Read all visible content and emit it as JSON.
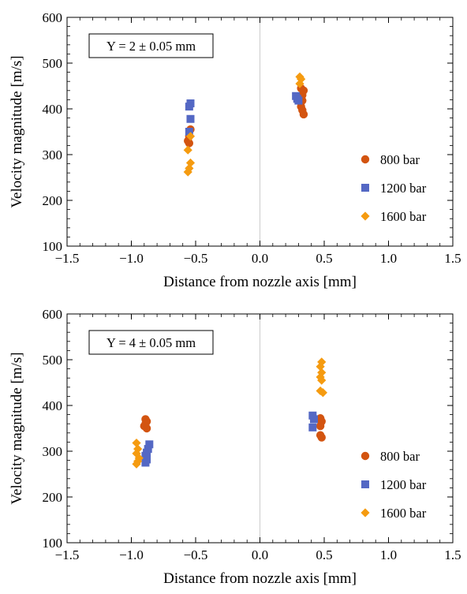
{
  "chart_data": [
    {
      "type": "scatter",
      "xlabel": "Distance from nozzle axis [mm]",
      "ylabel": "Velocity magnitude [m/s]",
      "xlim": [
        -1.5,
        1.5
      ],
      "ylim": [
        100,
        600
      ],
      "xticks": [
        -1.5,
        -1.0,
        -0.5,
        0.0,
        0.5,
        1.0,
        1.5
      ],
      "xtick_labels": [
        "−1.5",
        "−1.0",
        "−0.5",
        "0.0",
        "0.5",
        "1.0",
        "1.5"
      ],
      "yticks": [
        100,
        200,
        300,
        400,
        500,
        600
      ],
      "ytick_labels": [
        "100",
        "200",
        "300",
        "400",
        "500",
        "600"
      ],
      "annotation": "Y = 2 ± 0.05 mm",
      "legend_position": "right",
      "grid": false,
      "reference_line_x": 0,
      "series": [
        {
          "name": "800 bar",
          "marker": "circle",
          "color": "#d35410",
          "points": [
            [
              -0.54,
              355
            ],
            [
              -0.55,
              340
            ],
            [
              -0.56,
              330
            ],
            [
              -0.55,
              325
            ],
            [
              0.32,
              445
            ],
            [
              0.34,
              440
            ],
            [
              0.33,
              430
            ],
            [
              0.33,
              418
            ],
            [
              0.32,
              405
            ],
            [
              0.33,
              397
            ],
            [
              0.34,
              388
            ]
          ]
        },
        {
          "name": "1200 bar",
          "marker": "square",
          "color": "#5468c4",
          "points": [
            [
              -0.54,
              412
            ],
            [
              -0.55,
              405
            ],
            [
              -0.54,
              378
            ],
            [
              -0.55,
              350
            ],
            [
              0.28,
              428
            ],
            [
              0.29,
              422
            ],
            [
              0.3,
              418
            ]
          ]
        },
        {
          "name": "1600 bar",
          "marker": "diamond",
          "color": "#f59b10",
          "points": [
            [
              -0.54,
              340
            ],
            [
              -0.56,
              310
            ],
            [
              -0.54,
              282
            ],
            [
              -0.55,
              270
            ],
            [
              -0.56,
              262
            ],
            [
              0.31,
              470
            ],
            [
              0.32,
              465
            ],
            [
              0.31,
              455
            ]
          ]
        }
      ]
    },
    {
      "type": "scatter",
      "xlabel": "Distance from nozzle axis [mm]",
      "ylabel": "Velocity magnitude [m/s]",
      "xlim": [
        -1.5,
        1.5
      ],
      "ylim": [
        100,
        600
      ],
      "xticks": [
        -1.5,
        -1.0,
        -0.5,
        0.0,
        0.5,
        1.0,
        1.5
      ],
      "xtick_labels": [
        "−1.5",
        "−1.0",
        "−0.5",
        "0.0",
        "0.5",
        "1.0",
        "1.5"
      ],
      "yticks": [
        100,
        200,
        300,
        400,
        500,
        600
      ],
      "ytick_labels": [
        "100",
        "200",
        "300",
        "400",
        "500",
        "600"
      ],
      "annotation": "Y = 4 ± 0.05 mm",
      "legend_position": "right",
      "grid": false,
      "reference_line_x": 0,
      "series": [
        {
          "name": "800 bar",
          "marker": "circle",
          "color": "#d35410",
          "points": [
            [
              -0.89,
              370
            ],
            [
              -0.88,
              365
            ],
            [
              -0.89,
              360
            ],
            [
              -0.9,
              355
            ],
            [
              -0.88,
              350
            ],
            [
              0.47,
              372
            ],
            [
              0.48,
              365
            ],
            [
              0.47,
              355
            ],
            [
              0.47,
              335
            ],
            [
              0.48,
              330
            ]
          ]
        },
        {
          "name": "1200 bar",
          "marker": "square",
          "color": "#5468c4",
          "points": [
            [
              -0.86,
              315
            ],
            [
              -0.87,
              305
            ],
            [
              -0.88,
              297
            ],
            [
              -0.89,
              290
            ],
            [
              -0.88,
              282
            ],
            [
              -0.89,
              275
            ],
            [
              0.41,
              378
            ],
            [
              0.42,
              370
            ],
            [
              0.41,
              352
            ]
          ]
        },
        {
          "name": "1600 bar",
          "marker": "diamond",
          "color": "#f59b10",
          "points": [
            [
              -0.96,
              318
            ],
            [
              -0.95,
              305
            ],
            [
              -0.96,
              295
            ],
            [
              -0.94,
              285
            ],
            [
              -0.95,
              278
            ],
            [
              -0.96,
              272
            ],
            [
              0.48,
              495
            ],
            [
              0.47,
              485
            ],
            [
              0.48,
              472
            ],
            [
              0.47,
              462
            ],
            [
              0.48,
              455
            ],
            [
              0.47,
              432
            ],
            [
              0.49,
              428
            ]
          ]
        }
      ]
    }
  ]
}
